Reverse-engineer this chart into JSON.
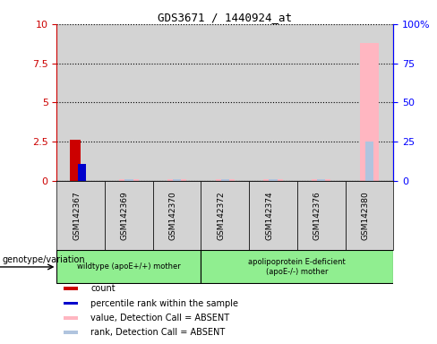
{
  "title": "GDS3671 / 1440924_at",
  "samples": [
    "GSM142367",
    "GSM142369",
    "GSM142370",
    "GSM142372",
    "GSM142374",
    "GSM142376",
    "GSM142380"
  ],
  "count_values": [
    2.6,
    0,
    0,
    0,
    0,
    0,
    0
  ],
  "percentile_values": [
    1.1,
    0,
    0,
    0,
    0,
    0,
    0
  ],
  "value_absent": [
    0,
    0.12,
    0.12,
    0.12,
    0.12,
    0.12,
    8.8
  ],
  "rank_absent": [
    0,
    0.12,
    0.12,
    0.12,
    0.12,
    0.12,
    2.5
  ],
  "ylim_left": [
    0,
    10
  ],
  "ylim_right": [
    0,
    100
  ],
  "yticks_left": [
    0,
    2.5,
    5,
    7.5,
    10
  ],
  "yticks_right": [
    0,
    25,
    50,
    75,
    100
  ],
  "ytick_labels_left": [
    "0",
    "2.5",
    "5",
    "7.5",
    "10"
  ],
  "ytick_labels_right": [
    "0",
    "25",
    "50",
    "75",
    "100%"
  ],
  "groups": [
    {
      "label": "wildtype (apoE+/+) mother",
      "color": "#90EE90",
      "start": 0,
      "end": 3
    },
    {
      "label": "apolipoprotein E-deficient\n(apoE-/-) mother",
      "color": "#90EE90",
      "start": 3,
      "end": 7
    }
  ],
  "group_annotation_label": "genotype/variation",
  "bar_width": 0.25,
  "colors": {
    "count": "#CC0000",
    "percentile": "#0000CC",
    "value_absent": "#FFB6C1",
    "rank_absent": "#B0C4DE",
    "axis_left": "#CC0000",
    "axis_right": "#0000FF",
    "bg": "#FFFFFF",
    "plot_bg": "#FFFFFF",
    "column_bg": "#D3D3D3"
  },
  "legend_items": [
    {
      "color": "#CC0000",
      "label": "count",
      "marker": "s"
    },
    {
      "color": "#0000CC",
      "label": "percentile rank within the sample",
      "marker": "s"
    },
    {
      "color": "#FFB6C1",
      "label": "value, Detection Call = ABSENT",
      "marker": "s"
    },
    {
      "color": "#B0C4DE",
      "label": "rank, Detection Call = ABSENT",
      "marker": "s"
    }
  ]
}
